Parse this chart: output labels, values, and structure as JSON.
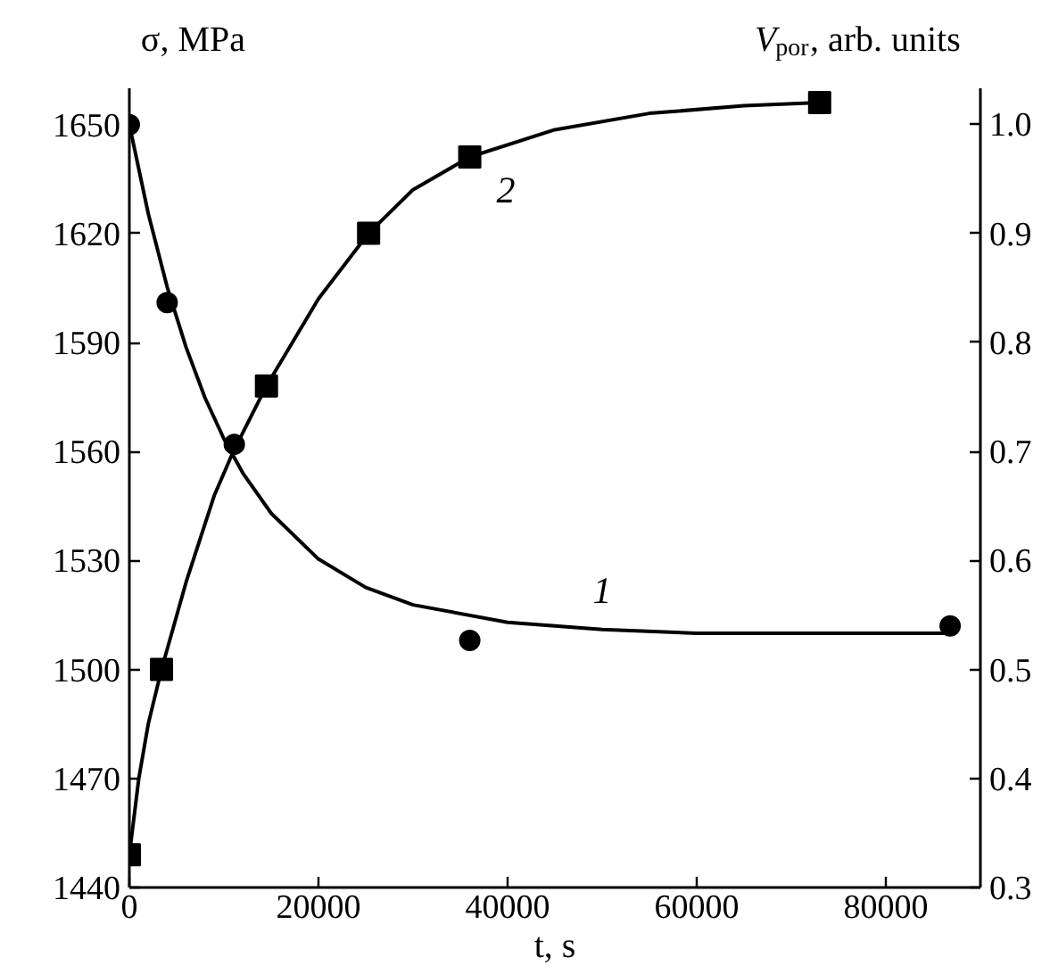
{
  "chart_data": {
    "type": "scatter",
    "xlabel": "t, s",
    "ylabel": "σ, MPa",
    "y2label": "V$_{por}$, arb. units",
    "xlim": [
      0,
      90000
    ],
    "xticks": [
      0,
      20000,
      40000,
      60000,
      80000
    ],
    "ylim": [
      1440,
      1660
    ],
    "yticks": [
      1440,
      1470,
      1500,
      1530,
      1560,
      1590,
      1620,
      1650
    ],
    "y2lim": [
      0.3,
      1.033
    ],
    "y2ticks": [
      0.3,
      0.4,
      0.5,
      0.6,
      0.7,
      0.8,
      0.9,
      {
        "value": 1.0,
        "label": "1.0"
      }
    ],
    "grid": false,
    "series": [
      {
        "marker": "circle",
        "color": "#000000",
        "x": [
          0,
          4000,
          11100,
          36000,
          86800
        ],
        "values": [
          1650,
          1601,
          1562,
          1508,
          1512
        ]
      },
      {
        "type": "line",
        "name": "1",
        "marker": "none",
        "line_style": "solid",
        "color": "#000000",
        "x": [
          0,
          2000,
          4000,
          6000,
          8000,
          10000,
          12000,
          15000,
          20000,
          25000,
          30000,
          40000,
          50000,
          60000,
          70000,
          86800
        ],
        "values": [
          1650,
          1625.5,
          1605.3,
          1588.7,
          1574.8,
          1563.5,
          1554.1,
          1543,
          1530.4,
          1522.6,
          1517.8,
          1513,
          1511,
          1510,
          1510,
          1510
        ]
      },
      {
        "marker": "square",
        "axis": "y2",
        "color": "#000000",
        "x": [
          0,
          3400,
          14500,
          25300,
          36000,
          73000
        ],
        "values": [
          0.33,
          0.5,
          0.76,
          0.9,
          0.97,
          1.02
        ]
      },
      {
        "type": "line",
        "name": "2",
        "marker": "none",
        "line_style": "solid",
        "axis": "y2",
        "color": "#000000",
        "x": [
          0,
          1000,
          2000,
          3400,
          6000,
          9000,
          11000,
          14500,
          20000,
          25300,
          30000,
          36000,
          45000,
          55000,
          65000,
          73000
        ],
        "values": [
          0.33,
          0.4,
          0.45,
          0.5,
          0.58,
          0.66,
          0.7,
          0.76,
          0.84,
          0.9,
          0.94,
          0.97,
          0.995,
          1.01,
          1.017,
          1.02
        ]
      }
    ]
  }
}
